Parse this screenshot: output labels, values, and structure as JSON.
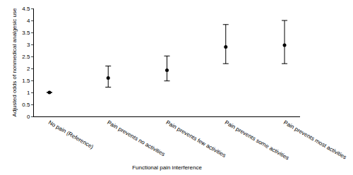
{
  "chart_data": {
    "type": "scatter",
    "x_label": "Functional pain interference",
    "y_label": "Adjusted odds of nonmedical analgesic use",
    "categories": [
      "No pain (Reference)",
      "Pain prevents no activities",
      "Pain prevents few activities",
      "Pain prevents some activities",
      "Pain prevents most activities"
    ],
    "values": [
      1.0,
      1.6,
      1.93,
      2.9,
      2.97
    ],
    "lower": [
      1.0,
      1.22,
      1.48,
      2.2,
      2.2
    ],
    "upper": [
      1.0,
      2.1,
      2.52,
      3.83,
      4.0
    ],
    "color": "#000000",
    "marker": "circle",
    "ylim": [
      0,
      4.5
    ],
    "yticks": [
      0,
      0.5,
      1,
      1.5,
      2,
      2.5,
      3,
      3.5,
      4,
      4.5
    ],
    "grid": false
  }
}
